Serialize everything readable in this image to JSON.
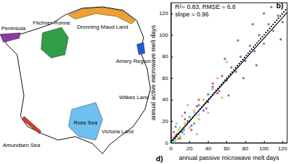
{
  "chart_data": {
    "type": "scatter",
    "x_label": "annual passive microwave melt days",
    "y_label": "annual active microwave melt days",
    "annotations": [
      "R²= 0.83, RMSE = 6.8",
      "slope = 0.96"
    ],
    "xlim": [
      0,
      125
    ],
    "ylim": [
      0,
      130
    ],
    "xticks": [
      0,
      20,
      40,
      60,
      80,
      100,
      120
    ],
    "yticks": [
      0,
      20,
      40,
      60,
      80,
      100,
      120
    ],
    "grid": false,
    "marker": "square",
    "series": [
      {
        "name": "Peninsula",
        "color": "#8a3aa0",
        "values": [
          [
            60,
            58
          ],
          [
            65,
            70
          ],
          [
            70,
            66
          ],
          [
            75,
            80
          ],
          [
            80,
            76
          ],
          [
            85,
            90
          ],
          [
            90,
            85
          ],
          [
            95,
            100
          ],
          [
            100,
            92
          ],
          [
            105,
            110
          ],
          [
            110,
            104
          ],
          [
            115,
            118
          ],
          [
            118,
            96
          ],
          [
            120,
            112
          ],
          [
            55,
            62
          ],
          [
            50,
            46
          ],
          [
            45,
            52
          ],
          [
            72,
            95
          ],
          [
            88,
            110
          ],
          [
            100,
            120
          ],
          [
            62,
            44
          ],
          [
            78,
            60
          ],
          [
            92,
            72
          ],
          [
            108,
            126
          ],
          [
            40,
            38
          ],
          [
            58,
            78
          ]
        ]
      },
      {
        "name": "Dronning Maud Land",
        "color": "#f0a030",
        "values": [
          [
            2,
            5
          ],
          [
            5,
            3
          ],
          [
            8,
            12
          ],
          [
            10,
            6
          ],
          [
            15,
            18
          ],
          [
            20,
            14
          ],
          [
            25,
            30
          ],
          [
            30,
            22
          ],
          [
            35,
            40
          ],
          [
            40,
            28
          ],
          [
            45,
            50
          ],
          [
            18,
            35
          ],
          [
            12,
            25
          ],
          [
            50,
            60
          ],
          [
            55,
            42
          ],
          [
            60,
            75
          ],
          [
            28,
            8
          ]
        ]
      },
      {
        "name": "Filchner-Ronne",
        "color": "#2f9e44",
        "values": [
          [
            0,
            2
          ],
          [
            3,
            0
          ],
          [
            6,
            8
          ],
          [
            10,
            4
          ],
          [
            14,
            12
          ],
          [
            20,
            24
          ],
          [
            5,
            15
          ],
          [
            25,
            18
          ],
          [
            30,
            35
          ]
        ]
      },
      {
        "name": "Amery Region",
        "color": "#1a5fd0",
        "values": [
          [
            5,
            6
          ],
          [
            12,
            10
          ],
          [
            18,
            20
          ],
          [
            22,
            16
          ],
          [
            28,
            34
          ],
          [
            35,
            30
          ],
          [
            40,
            45
          ],
          [
            15,
            28
          ]
        ]
      },
      {
        "name": "Ross Sea",
        "color": "#6ec0f0",
        "values": [
          [
            0,
            0
          ],
          [
            2,
            3
          ],
          [
            4,
            1
          ],
          [
            8,
            9
          ],
          [
            10,
            14
          ],
          [
            14,
            8
          ],
          [
            20,
            20
          ],
          [
            25,
            28
          ],
          [
            30,
            26
          ],
          [
            6,
            18
          ]
        ]
      },
      {
        "name": "Amundsen Sea",
        "color": "#d23a2a",
        "values": [
          [
            3,
            10
          ],
          [
            8,
            4
          ],
          [
            15,
            22
          ],
          [
            22,
            12
          ],
          [
            30,
            40
          ],
          [
            38,
            32
          ],
          [
            45,
            55
          ],
          [
            52,
            48
          ]
        ]
      }
    ],
    "lines": [
      {
        "line_style": "solid",
        "color": "#000000",
        "values": [
          [
            0,
            1
          ],
          [
            125,
            121
          ]
        ]
      },
      {
        "line_style": "dotted",
        "color": "#000000",
        "values": [
          [
            0,
            0
          ],
          [
            125,
            125
          ]
        ]
      }
    ]
  },
  "map": {
    "labels": [
      {
        "text": "Peninsula",
        "color": "#8a3aa0"
      },
      {
        "text": "Filchner-Ronne",
        "color": "#2f9e44"
      },
      {
        "text": "Dronning Maud Land",
        "color": "#f0a030"
      },
      {
        "text": "Amery Region",
        "color": "#1a5fd0"
      },
      {
        "text": "Wilkes Land"
      },
      {
        "text": "Victoria Land"
      },
      {
        "text": "Ross Sea",
        "color": "#6ec0f0"
      },
      {
        "text": "Amundsen Sea",
        "color": "#d23a2a"
      }
    ]
  },
  "panel_labels": [
    "b)",
    "d)"
  ]
}
